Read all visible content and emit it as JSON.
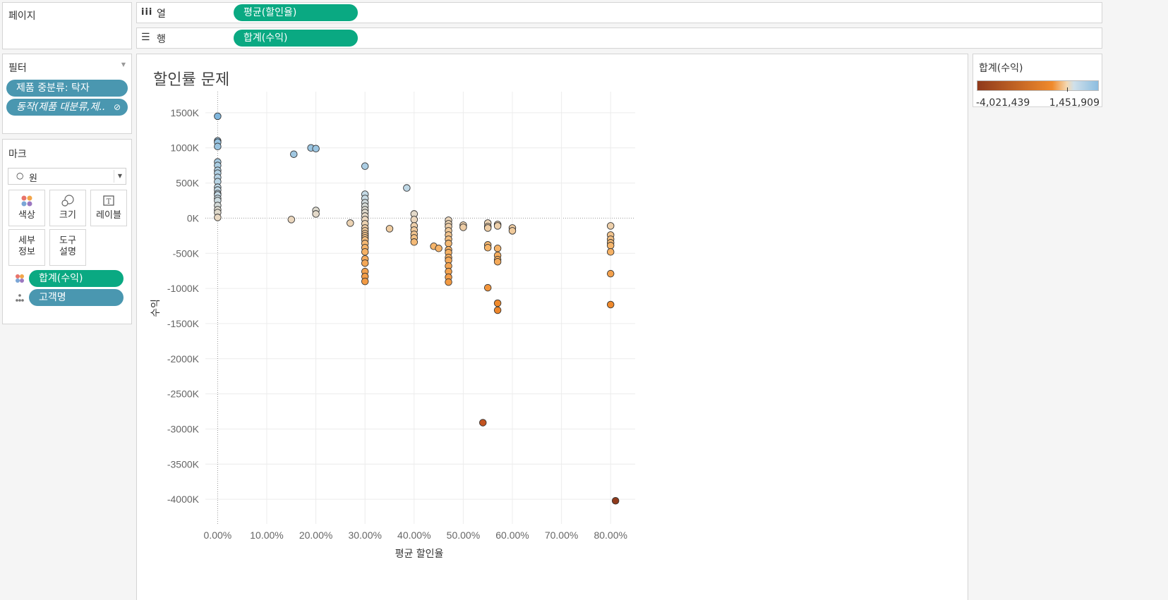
{
  "pages": {
    "label": "페이지"
  },
  "columns_shelf": {
    "icon": "columns-icon",
    "label": "열",
    "pill": "평균(할인율)"
  },
  "rows_shelf": {
    "icon": "rows-icon",
    "label": "행",
    "pill": "합계(수익)"
  },
  "filters": {
    "title": "필터",
    "items": [
      "제품 중분류: 탁자",
      "동작(제품 대분류,제.."
    ]
  },
  "marks": {
    "title": "마크",
    "mark_type": "원",
    "buttons": [
      {
        "icon": "color-icon",
        "label": "색상"
      },
      {
        "icon": "size-icon",
        "label": "크기"
      },
      {
        "icon": "label-icon",
        "label": "레이블"
      },
      {
        "icon": "detail-icon",
        "label": "세부\n정보"
      },
      {
        "icon": "tooltip-icon",
        "label": "도구\n설명"
      }
    ],
    "fields": [
      {
        "icon": "color-icon",
        "label": "합계(수익)"
      },
      {
        "icon": "detail-icon",
        "label": "고객명"
      }
    ]
  },
  "legend": {
    "title": "합계(수익)",
    "min_label": "-4,021,439",
    "max_label": "1,451,909",
    "colors": {
      "min": "#8f3a1b",
      "mid_low": "#f08a2c",
      "mid": "#f5d8b0",
      "mid_high": "#cfe0ea",
      "max": "#8cbde0"
    }
  },
  "chart_data": {
    "type": "scatter",
    "title": "할인률 문제",
    "xlabel": "평균 할인율",
    "ylabel": "수익",
    "xlim": [
      -0.025,
      0.85
    ],
    "ylim": [
      -4350000,
      1800000
    ],
    "x_ticks": [
      "0.00%",
      "10.00%",
      "20.00%",
      "30.00%",
      "40.00%",
      "50.00%",
      "60.00%",
      "70.00%",
      "80.00%"
    ],
    "y_ticks": [
      "1500K",
      "1000K",
      "500K",
      "0K",
      "-500K",
      "-1000K",
      "-1500K",
      "-2000K",
      "-2500K",
      "-3000K",
      "-3500K",
      "-4000K"
    ],
    "points": [
      [
        0.0,
        1450000
      ],
      [
        0.0,
        1100000
      ],
      [
        0.0,
        1080000
      ],
      [
        0.0,
        1020000
      ],
      [
        0.0,
        800000
      ],
      [
        0.0,
        750000
      ],
      [
        0.0,
        680000
      ],
      [
        0.0,
        640000
      ],
      [
        0.0,
        580000
      ],
      [
        0.0,
        520000
      ],
      [
        0.0,
        440000
      ],
      [
        0.0,
        400000
      ],
      [
        0.0,
        350000
      ],
      [
        0.0,
        330000
      ],
      [
        0.0,
        280000
      ],
      [
        0.0,
        250000
      ],
      [
        0.0,
        180000
      ],
      [
        0.0,
        120000
      ],
      [
        0.0,
        80000
      ],
      [
        0.0,
        10000
      ],
      [
        0.155,
        910000
      ],
      [
        0.19,
        1000000
      ],
      [
        0.2,
        990000
      ],
      [
        0.15,
        -20000
      ],
      [
        0.2,
        110000
      ],
      [
        0.2,
        60000
      ],
      [
        0.3,
        740000
      ],
      [
        0.3,
        340000
      ],
      [
        0.3,
        280000
      ],
      [
        0.3,
        220000
      ],
      [
        0.3,
        170000
      ],
      [
        0.3,
        120000
      ],
      [
        0.3,
        80000
      ],
      [
        0.3,
        30000
      ],
      [
        0.3,
        -20000
      ],
      [
        0.3,
        -80000
      ],
      [
        0.3,
        -140000
      ],
      [
        0.3,
        -180000
      ],
      [
        0.3,
        -220000
      ],
      [
        0.3,
        -250000
      ],
      [
        0.3,
        -280000
      ],
      [
        0.3,
        -310000
      ],
      [
        0.3,
        -360000
      ],
      [
        0.3,
        -420000
      ],
      [
        0.3,
        -480000
      ],
      [
        0.3,
        -580000
      ],
      [
        0.3,
        -640000
      ],
      [
        0.3,
        -760000
      ],
      [
        0.3,
        -830000
      ],
      [
        0.3,
        -900000
      ],
      [
        0.27,
        -70000
      ],
      [
        0.35,
        -150000
      ],
      [
        0.385,
        430000
      ],
      [
        0.4,
        60000
      ],
      [
        0.4,
        -20000
      ],
      [
        0.4,
        -110000
      ],
      [
        0.4,
        -170000
      ],
      [
        0.4,
        -230000
      ],
      [
        0.4,
        -280000
      ],
      [
        0.4,
        -340000
      ],
      [
        0.44,
        -400000
      ],
      [
        0.45,
        -430000
      ],
      [
        0.47,
        -30000
      ],
      [
        0.47,
        -80000
      ],
      [
        0.47,
        -120000
      ],
      [
        0.47,
        -180000
      ],
      [
        0.47,
        -240000
      ],
      [
        0.47,
        -300000
      ],
      [
        0.47,
        -360000
      ],
      [
        0.47,
        -450000
      ],
      [
        0.47,
        -490000
      ],
      [
        0.47,
        -560000
      ],
      [
        0.47,
        -600000
      ],
      [
        0.47,
        -680000
      ],
      [
        0.47,
        -760000
      ],
      [
        0.47,
        -840000
      ],
      [
        0.47,
        -910000
      ],
      [
        0.5,
        -100000
      ],
      [
        0.5,
        -130000
      ],
      [
        0.54,
        -2910000
      ],
      [
        0.55,
        -70000
      ],
      [
        0.55,
        -120000
      ],
      [
        0.55,
        -140000
      ],
      [
        0.55,
        -380000
      ],
      [
        0.55,
        -420000
      ],
      [
        0.55,
        -990000
      ],
      [
        0.57,
        -90000
      ],
      [
        0.57,
        -110000
      ],
      [
        0.57,
        -430000
      ],
      [
        0.57,
        -530000
      ],
      [
        0.57,
        -590000
      ],
      [
        0.57,
        -620000
      ],
      [
        0.57,
        -1210000
      ],
      [
        0.57,
        -1310000
      ],
      [
        0.6,
        -140000
      ],
      [
        0.6,
        -180000
      ],
      [
        0.8,
        -110000
      ],
      [
        0.8,
        -240000
      ],
      [
        0.8,
        -300000
      ],
      [
        0.8,
        -350000
      ],
      [
        0.8,
        -390000
      ],
      [
        0.8,
        -480000
      ],
      [
        0.8,
        -790000
      ],
      [
        0.8,
        -1230000
      ],
      [
        0.81,
        -4021439
      ]
    ]
  }
}
